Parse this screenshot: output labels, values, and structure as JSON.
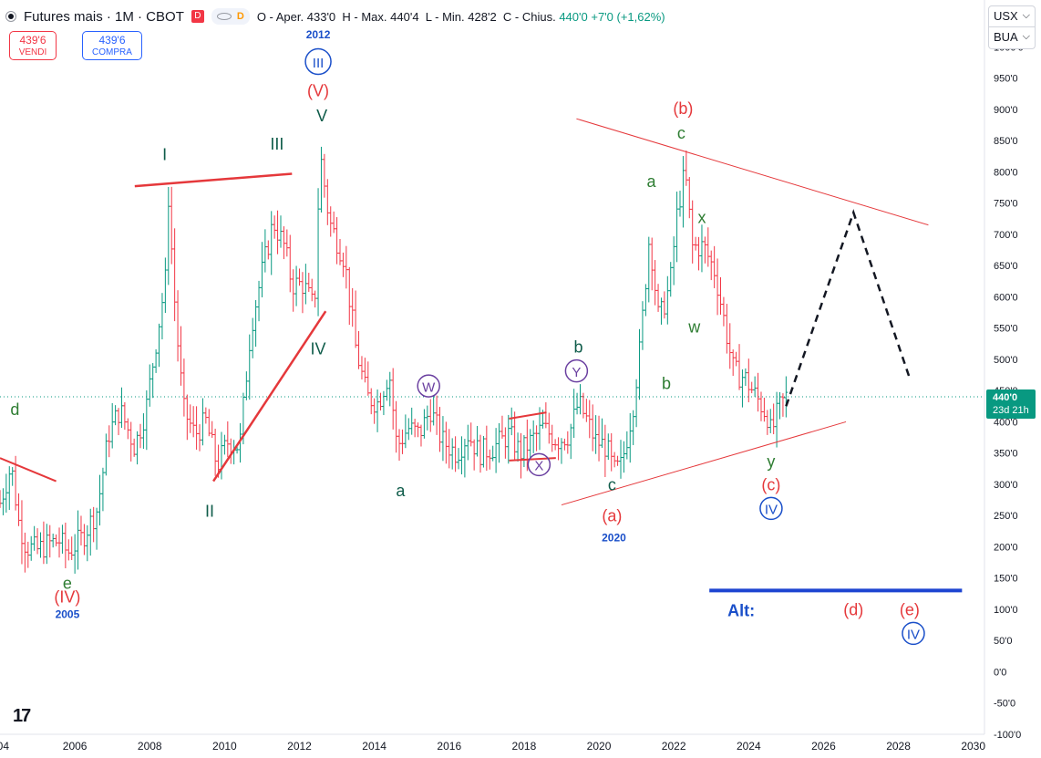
{
  "header": {
    "title": "Futures mais · 1M · CBOT",
    "flag": "D",
    "pill_letter": "D",
    "open": "O - Aper.",
    "open_val": "433'0",
    "high": "H - Max.",
    "high_val": "440'4",
    "low": "L - Min.",
    "low_val": "428'2",
    "close": "C - Chius.",
    "close_val": "440'0",
    "change": "+7'0 (+1,62%)"
  },
  "trade": {
    "sell_price": "439'6",
    "sell_label": "VENDI",
    "buy_price": "439'6",
    "buy_label": "COMPRA"
  },
  "currency": {
    "unit": "USX",
    "mode": "BUA"
  },
  "logo": "17",
  "colors": {
    "up": "#089981",
    "down": "#f23645",
    "wave_green": "#2e7d32",
    "wave_dark": "#0f5c4a",
    "wave_red": "#e5383b",
    "wave_blue": "#1a4fc9",
    "wave_purple": "#6a3fa0",
    "trendline": "#e5383b",
    "projection": "#131722",
    "alt_line": "#1d45d1",
    "last_price_bg": "#089981"
  },
  "chart_data": {
    "type": "candlestick",
    "title": "Futures mais · 1M · CBOT",
    "y_range": [
      -100,
      1075
    ],
    "x_range": [
      2004.0,
      2030.3
    ],
    "y_ticks": [
      "1050'0",
      "1000'0",
      "950'0",
      "900'0",
      "850'0",
      "800'0",
      "750'0",
      "700'0",
      "650'0",
      "600'0",
      "550'0",
      "500'0",
      "450'0",
      "400'0",
      "350'0",
      "300'0",
      "250'0",
      "200'0",
      "150'0",
      "100'0",
      "50'0",
      "0'0",
      "-50'0",
      "-100'0"
    ],
    "y_tick_values": [
      1050,
      1000,
      950,
      900,
      850,
      800,
      750,
      700,
      650,
      600,
      550,
      500,
      450,
      400,
      350,
      300,
      250,
      200,
      150,
      100,
      50,
      0,
      -50,
      -100
    ],
    "x_ticks": [
      "004",
      "2006",
      "2008",
      "2010",
      "2012",
      "2014",
      "2016",
      "2018",
      "2020",
      "2022",
      "2024",
      "2026",
      "2028",
      "2030"
    ],
    "x_tick_values": [
      2004,
      2006,
      2008,
      2010,
      2012,
      2014,
      2016,
      2018,
      2020,
      2022,
      2024,
      2026,
      2028,
      2030
    ],
    "last_price": {
      "value": 440,
      "label": "440'0",
      "countdown": "23d 21h"
    },
    "price_path": [
      [
        2004.0,
        270
      ],
      [
        2004.3,
        330
      ],
      [
        2004.5,
        240
      ],
      [
        2004.7,
        200
      ],
      [
        2005.0,
        195
      ],
      [
        2005.3,
        205
      ],
      [
        2005.6,
        210
      ],
      [
        2005.8,
        190
      ],
      [
        2006.2,
        215
      ],
      [
        2006.6,
        260
      ],
      [
        2006.9,
        380
      ],
      [
        2007.2,
        420
      ],
      [
        2007.6,
        360
      ],
      [
        2007.9,
        420
      ],
      [
        2008.2,
        540
      ],
      [
        2008.45,
        640
      ],
      [
        2008.5,
        760
      ],
      [
        2008.7,
        560
      ],
      [
        2008.9,
        420
      ],
      [
        2009.2,
        380
      ],
      [
        2009.5,
        400
      ],
      [
        2009.8,
        330
      ],
      [
        2010.1,
        370
      ],
      [
        2010.4,
        360
      ],
      [
        2010.7,
        550
      ],
      [
        2011.0,
        640
      ],
      [
        2011.3,
        720
      ],
      [
        2011.6,
        680
      ],
      [
        2011.8,
        620
      ],
      [
        2012.1,
        620
      ],
      [
        2012.4,
        580
      ],
      [
        2012.55,
        830
      ],
      [
        2012.8,
        720
      ],
      [
        2013.2,
        660
      ],
      [
        2013.5,
        520
      ],
      [
        2013.8,
        440
      ],
      [
        2014.1,
        430
      ],
      [
        2014.4,
        480
      ],
      [
        2014.6,
        360
      ],
      [
        2014.9,
        390
      ],
      [
        2015.2,
        380
      ],
      [
        2015.5,
        420
      ],
      [
        2015.8,
        370
      ],
      [
        2016.2,
        350
      ],
      [
        2016.5,
        380
      ],
      [
        2016.8,
        350
      ],
      [
        2017.2,
        360
      ],
      [
        2017.6,
        380
      ],
      [
        2017.9,
        350
      ],
      [
        2018.2,
        370
      ],
      [
        2018.5,
        390
      ],
      [
        2018.9,
        370
      ],
      [
        2019.2,
        380
      ],
      [
        2019.45,
        430
      ],
      [
        2019.7,
        400
      ],
      [
        2019.9,
        370
      ],
      [
        2020.2,
        360
      ],
      [
        2020.4,
        320
      ],
      [
        2020.6,
        330
      ],
      [
        2020.9,
        420
      ],
      [
        2021.1,
        520
      ],
      [
        2021.35,
        700
      ],
      [
        2021.6,
        560
      ],
      [
        2021.9,
        620
      ],
      [
        2022.1,
        740
      ],
      [
        2022.3,
        800
      ],
      [
        2022.5,
        680
      ],
      [
        2022.8,
        680
      ],
      [
        2023.1,
        640
      ],
      [
        2023.35,
        560
      ],
      [
        2023.6,
        480
      ],
      [
        2023.9,
        470
      ],
      [
        2024.2,
        440
      ],
      [
        2024.5,
        410
      ],
      [
        2024.6,
        380
      ],
      [
        2024.8,
        420
      ],
      [
        2025.0,
        440
      ]
    ],
    "annotations": [
      {
        "text": "d",
        "x": 2004.4,
        "y": 420,
        "color": "wave_green",
        "circled": false
      },
      {
        "text": "e",
        "x": 2005.8,
        "y": 142,
        "color": "wave_green",
        "circled": false
      },
      {
        "text": "(IV)",
        "x": 2005.8,
        "y": 120,
        "color": "wave_red",
        "circled": false
      },
      {
        "text": "2005",
        "x": 2005.8,
        "y": 92,
        "color": "wave_blue",
        "circled": false,
        "small": true
      },
      {
        "text": "I",
        "x": 2008.4,
        "y": 828,
        "color": "wave_dark",
        "circled": false
      },
      {
        "text": "II",
        "x": 2009.6,
        "y": 257,
        "color": "wave_dark",
        "circled": false
      },
      {
        "text": "III",
        "x": 2011.4,
        "y": 845,
        "color": "wave_dark",
        "circled": false
      },
      {
        "text": "IV",
        "x": 2012.5,
        "y": 517,
        "color": "wave_dark",
        "circled": false
      },
      {
        "text": "V",
        "x": 2012.6,
        "y": 890,
        "color": "wave_dark",
        "circled": false
      },
      {
        "text": "(V)",
        "x": 2012.5,
        "y": 930,
        "color": "wave_red",
        "circled": false
      },
      {
        "text": "III",
        "x": 2012.5,
        "y": 975,
        "color": "wave_blue",
        "circled": true
      },
      {
        "text": "2012",
        "x": 2012.5,
        "y": 1020,
        "color": "wave_blue",
        "circled": false,
        "small": true
      },
      {
        "text": "a",
        "x": 2014.7,
        "y": 290,
        "color": "wave_dark",
        "circled": false
      },
      {
        "text": "W",
        "x": 2015.45,
        "y": 456,
        "color": "wave_purple",
        "circled": true
      },
      {
        "text": "X",
        "x": 2018.4,
        "y": 330,
        "color": "wave_purple",
        "circled": true
      },
      {
        "text": "Y",
        "x": 2019.4,
        "y": 480,
        "color": "wave_purple",
        "circled": true
      },
      {
        "text": "b",
        "x": 2019.45,
        "y": 520,
        "color": "wave_dark",
        "circled": false
      },
      {
        "text": "c",
        "x": 2020.35,
        "y": 300,
        "color": "wave_dark",
        "circled": false
      },
      {
        "text": "(a)",
        "x": 2020.35,
        "y": 250,
        "color": "wave_red",
        "circled": false
      },
      {
        "text": "2020",
        "x": 2020.4,
        "y": 215,
        "color": "wave_blue",
        "circled": false,
        "small": true
      },
      {
        "text": "a",
        "x": 2021.4,
        "y": 785,
        "color": "wave_green",
        "circled": false
      },
      {
        "text": "b",
        "x": 2021.8,
        "y": 462,
        "color": "wave_green",
        "circled": false
      },
      {
        "text": "c",
        "x": 2022.2,
        "y": 862,
        "color": "wave_green",
        "circled": false
      },
      {
        "text": "(b)",
        "x": 2022.25,
        "y": 902,
        "color": "wave_red",
        "circled": false
      },
      {
        "text": "x",
        "x": 2022.75,
        "y": 727,
        "color": "wave_green",
        "circled": false
      },
      {
        "text": "w",
        "x": 2022.55,
        "y": 552,
        "color": "wave_green",
        "circled": false
      },
      {
        "text": "y",
        "x": 2024.6,
        "y": 337,
        "color": "wave_green",
        "circled": false
      },
      {
        "text": "(c)",
        "x": 2024.6,
        "y": 300,
        "color": "wave_red",
        "circled": false
      },
      {
        "text": "IV",
        "x": 2024.6,
        "y": 260,
        "color": "wave_blue",
        "circled": true
      },
      {
        "text": "(d)",
        "x": 2026.8,
        "y": 100,
        "color": "wave_red",
        "circled": false
      },
      {
        "text": "(e)",
        "x": 2028.3,
        "y": 100,
        "color": "wave_red",
        "circled": false
      },
      {
        "text": "IV",
        "x": 2028.4,
        "y": 60,
        "color": "wave_blue",
        "circled": true
      },
      {
        "text": "Alt:",
        "x": 2023.8,
        "y": 98,
        "color": "wave_blue",
        "circled": false,
        "bold": true
      }
    ],
    "trendlines": [
      {
        "from": [
          2004.0,
          342
        ],
        "to": [
          2005.5,
          305
        ],
        "color": "trendline",
        "width": 2
      },
      {
        "from": [
          2007.6,
          777
        ],
        "to": [
          2011.8,
          797
        ],
        "color": "trendline",
        "width": 2.5
      },
      {
        "from": [
          2009.7,
          305
        ],
        "to": [
          2012.7,
          577
        ],
        "color": "trendline",
        "width": 2.5
      },
      {
        "from": [
          2017.6,
          405
        ],
        "to": [
          2018.6,
          415
        ],
        "color": "trendline",
        "width": 2
      },
      {
        "from": [
          2017.6,
          338
        ],
        "to": [
          2018.85,
          342
        ],
        "color": "trendline",
        "width": 2
      },
      {
        "from": [
          2019.4,
          885
        ],
        "to": [
          2028.8,
          715
        ],
        "color": "trendline",
        "width": 1
      },
      {
        "from": [
          2019.0,
          267
        ],
        "to": [
          2026.6,
          400
        ],
        "color": "trendline",
        "width": 1
      }
    ],
    "projection": [
      [
        2025.0,
        425
      ],
      [
        2026.8,
        735
      ],
      [
        2028.3,
        470
      ]
    ],
    "alt_line": {
      "from": [
        2022.95,
        130
      ],
      "to": [
        2029.7,
        130
      ]
    }
  }
}
